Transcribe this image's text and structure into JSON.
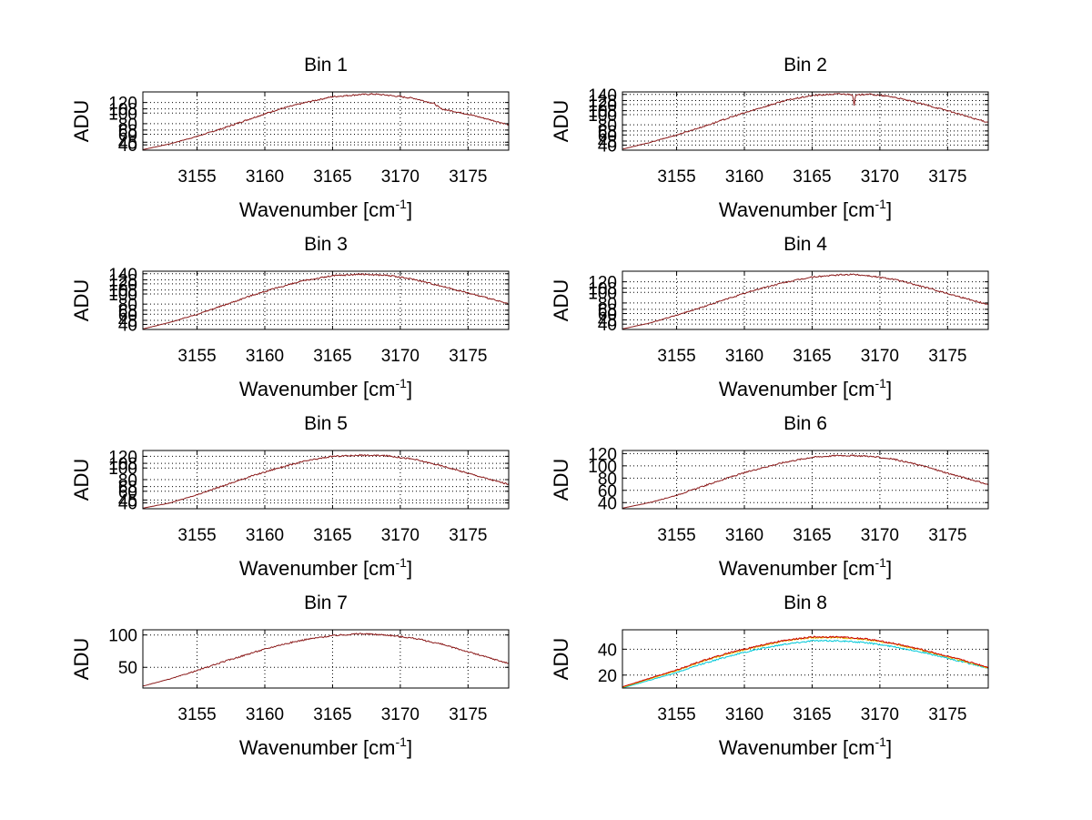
{
  "figure": {
    "background": "#ffffff"
  },
  "chart_data": [
    {
      "type": "line",
      "title": "Bin 1",
      "xlabel": "Wavenumber [cm",
      "xlabel_sup": "-1",
      "xlabel_suffix": "]",
      "ylabel": "ADU",
      "xlim": [
        3151,
        3178
      ],
      "ylim": [
        30,
        140
      ],
      "xticks": [
        3155,
        3160,
        3165,
        3170,
        3175
      ],
      "yticks": [
        40,
        45,
        60,
        68,
        80,
        100,
        108,
        120
      ],
      "x": [
        3151,
        3153,
        3155,
        3157,
        3159,
        3161,
        3163,
        3165,
        3167,
        3168,
        3169,
        3171,
        3172.5,
        3173,
        3175,
        3177,
        3178
      ],
      "series": [
        {
          "name": "trace",
          "color": "#8b1a1a",
          "values": [
            31,
            42,
            56,
            72,
            90,
            107,
            120,
            131,
            135,
            136,
            134,
            128,
            118,
            108,
            98,
            85,
            78
          ]
        }
      ]
    },
    {
      "type": "line",
      "title": "Bin 2",
      "xlabel": "Wavenumber [cm",
      "xlabel_sup": "-1",
      "xlabel_suffix": "]",
      "ylabel": "ADU",
      "xlim": [
        3151,
        3178
      ],
      "ylim": [
        30,
        145
      ],
      "xticks": [
        3155,
        3160,
        3165,
        3170,
        3175
      ],
      "yticks": [
        40,
        48,
        60,
        68,
        80,
        100,
        108,
        120,
        128,
        140
      ],
      "x": [
        3151,
        3153,
        3155,
        3157,
        3159,
        3161,
        3163,
        3165,
        3167,
        3168,
        3168.1,
        3168.2,
        3169,
        3171,
        3173,
        3175,
        3177,
        3178
      ],
      "series": [
        {
          "name": "trace",
          "color": "#8b1a1a",
          "values": [
            32,
            45,
            60,
            77,
            95,
            112,
            128,
            138,
            141,
            140,
            118,
            138,
            141,
            135,
            122,
            108,
            92,
            85
          ]
        }
      ]
    },
    {
      "type": "line",
      "title": "Bin 3",
      "xlabel": "Wavenumber [cm",
      "xlabel_sup": "-1",
      "xlabel_suffix": "]",
      "ylabel": "ADU",
      "xlim": [
        3151,
        3178
      ],
      "ylim": [
        30,
        145
      ],
      "xticks": [
        3155,
        3160,
        3165,
        3170,
        3175
      ],
      "yticks": [
        40,
        48,
        60,
        68,
        80,
        100,
        108,
        120,
        128,
        140
      ],
      "x": [
        3151,
        3153,
        3155,
        3157,
        3159,
        3161,
        3163,
        3165,
        3167,
        3169,
        3171,
        3173,
        3175,
        3177,
        3178
      ],
      "series": [
        {
          "name": "trace",
          "color": "#8b1a1a",
          "values": [
            31,
            44,
            60,
            78,
            97,
            113,
            127,
            136,
            139,
            137,
            129,
            116,
            102,
            88,
            80
          ]
        }
      ]
    },
    {
      "type": "line",
      "title": "Bin 4",
      "xlabel": "Wavenumber [cm",
      "xlabel_sup": "-1",
      "xlabel_suffix": "]",
      "ylabel": "ADU",
      "xlim": [
        3151,
        3178
      ],
      "ylim": [
        30,
        140
      ],
      "xticks": [
        3155,
        3160,
        3165,
        3170,
        3175
      ],
      "yticks": [
        40,
        48,
        60,
        68,
        80,
        100,
        108,
        120
      ],
      "x": [
        3151,
        3153,
        3155,
        3157,
        3159,
        3161,
        3163,
        3165,
        3167,
        3168,
        3169,
        3171,
        3173,
        3175,
        3177,
        3178
      ],
      "series": [
        {
          "name": "trace",
          "color": "#8b1a1a",
          "values": [
            31,
            42,
            57,
            73,
            90,
            106,
            119,
            129,
            133,
            134,
            132,
            125,
            112,
            98,
            84,
            77
          ]
        }
      ]
    },
    {
      "type": "line",
      "title": "Bin 5",
      "xlabel": "Wavenumber [cm",
      "xlabel_sup": "-1",
      "xlabel_suffix": "]",
      "ylabel": "ADU",
      "xlim": [
        3151,
        3178
      ],
      "ylim": [
        30,
        130
      ],
      "xticks": [
        3155,
        3160,
        3165,
        3170,
        3175
      ],
      "yticks": [
        40,
        45,
        60,
        68,
        80,
        100,
        108,
        120
      ],
      "x": [
        3151,
        3153,
        3155,
        3157,
        3159,
        3161,
        3163,
        3165,
        3167,
        3169,
        3171,
        3173,
        3175,
        3177,
        3178
      ],
      "series": [
        {
          "name": "trace",
          "color": "#8b1a1a",
          "values": [
            31,
            40,
            54,
            70,
            86,
            100,
            112,
            120,
            122,
            121,
            115,
            104,
            91,
            78,
            72
          ]
        }
      ]
    },
    {
      "type": "line",
      "title": "Bin 6",
      "xlabel": "Wavenumber [cm",
      "xlabel_sup": "-1",
      "xlabel_suffix": "]",
      "ylabel": "ADU",
      "xlim": [
        3151,
        3178
      ],
      "ylim": [
        30,
        125
      ],
      "xticks": [
        3155,
        3160,
        3165,
        3170,
        3175
      ],
      "yticks": [
        40,
        60,
        80,
        100,
        120
      ],
      "x": [
        3151,
        3153,
        3155,
        3157,
        3159,
        3161,
        3163,
        3165,
        3167,
        3169,
        3171,
        3173,
        3175,
        3177,
        3178
      ],
      "series": [
        {
          "name": "trace",
          "color": "#8b1a1a",
          "values": [
            31,
            40,
            52,
            67,
            82,
            95,
            106,
            114,
            117,
            116,
            111,
            101,
            88,
            76,
            69
          ]
        }
      ]
    },
    {
      "type": "line",
      "title": "Bin 7",
      "xlabel": "Wavenumber [cm",
      "xlabel_sup": "-1",
      "xlabel_suffix": "]",
      "ylabel": "ADU",
      "xlim": [
        3151,
        3178
      ],
      "ylim": [
        18,
        108
      ],
      "xticks": [
        3155,
        3160,
        3165,
        3170,
        3175
      ],
      "yticks": [
        50,
        100
      ],
      "x": [
        3151,
        3153,
        3155,
        3157,
        3159,
        3161,
        3163,
        3165,
        3167,
        3169,
        3171,
        3173,
        3175,
        3177,
        3178
      ],
      "series": [
        {
          "name": "trace",
          "color": "#8b1a1a",
          "values": [
            21,
            32,
            45,
            59,
            72,
            84,
            93,
            99,
            102,
            100,
            95,
            86,
            74,
            62,
            56
          ]
        }
      ]
    },
    {
      "type": "line",
      "title": "Bin 8",
      "xlabel": "Wavenumber [cm",
      "xlabel_sup": "-1",
      "xlabel_suffix": "]",
      "ylabel": "ADU",
      "xlim": [
        3151,
        3178
      ],
      "ylim": [
        10,
        55
      ],
      "xticks": [
        3155,
        3160,
        3165,
        3170,
        3175
      ],
      "yticks": [
        20,
        40
      ],
      "x": [
        3151,
        3153,
        3155,
        3157,
        3159,
        3161,
        3163,
        3165,
        3167,
        3169,
        3171,
        3173,
        3175,
        3177,
        3178
      ],
      "series": [
        {
          "name": "trace-cyan",
          "color": "#00c8d8",
          "values": [
            10,
            16,
            22,
            29,
            35,
            40,
            44,
            46.5,
            46.5,
            45,
            42,
            38,
            33,
            28,
            25
          ]
        },
        {
          "name": "trace-yellow",
          "color": "#e0c000",
          "values": [
            10.5,
            17,
            23.5,
            31,
            37,
            42,
            46.5,
            49,
            49,
            47.5,
            44,
            39.5,
            34,
            28.5,
            25.5
          ]
        },
        {
          "name": "trace-red",
          "color": "#cc0000",
          "values": [
            11,
            17.5,
            24,
            31.5,
            37.5,
            42.5,
            47,
            49.5,
            49.5,
            48,
            44.5,
            40,
            34.5,
            29,
            26
          ]
        }
      ]
    }
  ]
}
